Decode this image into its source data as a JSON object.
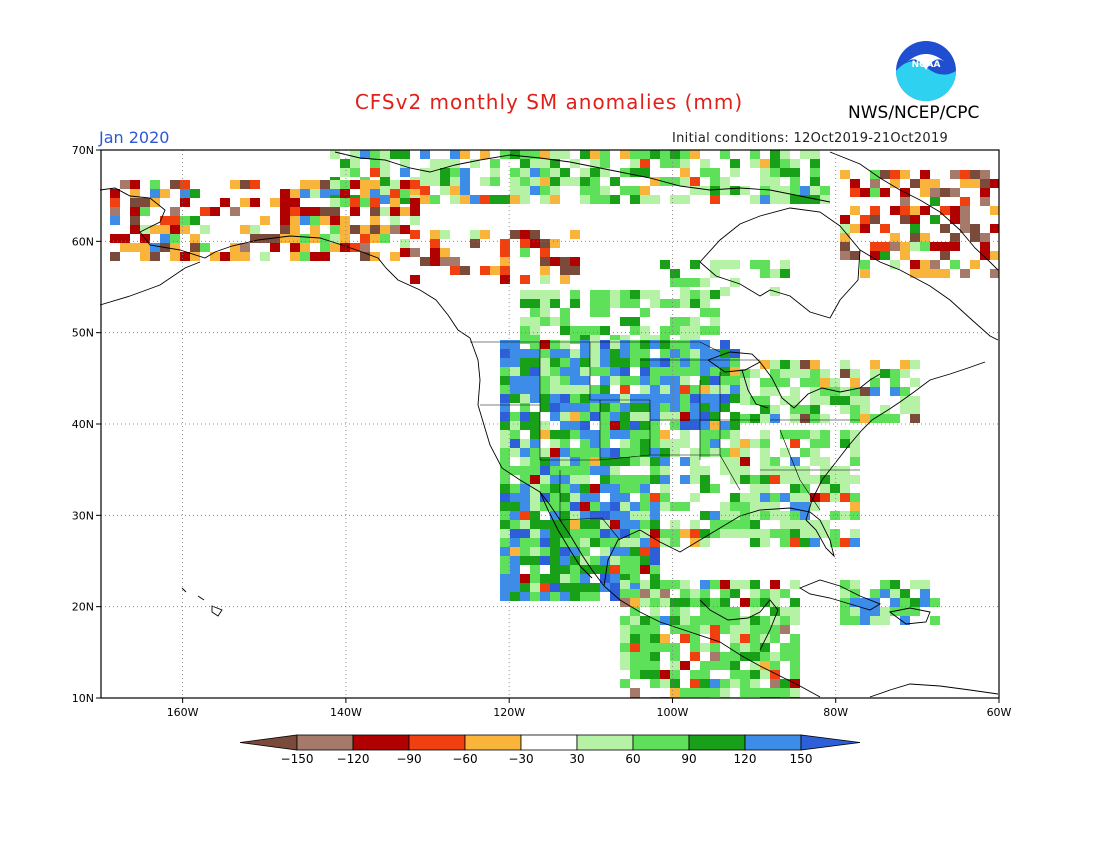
{
  "title": "CFSv2 monthly SM anomalies (mm)",
  "valid_month": "Jan 2020",
  "initial_conditions": "Initial conditions: 12Oct2019-21Oct2019",
  "agency": "NWS/NCEP/CPC",
  "logo_text": "NOAA",
  "map": {
    "lon_range": [
      -170,
      -60
    ],
    "lat_range": [
      10,
      70
    ],
    "lat_labels": [
      "70N",
      "60N",
      "50N",
      "40N",
      "30N",
      "20N",
      "10N"
    ],
    "lon_labels": [
      "160W",
      "140W",
      "120W",
      "100W",
      "80W",
      "60W"
    ],
    "gridlines": "dotted",
    "region": "North America"
  },
  "colorbar": {
    "tick_labels": [
      "−150",
      "−120",
      "−90",
      "−60",
      "−30",
      "30",
      "60",
      "90",
      "120",
      "150"
    ],
    "colors": [
      "#7a4a3a",
      "#a67a6a",
      "#b00000",
      "#f0400f",
      "#f9b43c",
      "#ffffff",
      "#b5f2a5",
      "#5ee05a",
      "#18a018",
      "#3c8ce8",
      "#2d5fd8"
    ]
  },
  "colors": {
    "title": "#e0201a",
    "month": "#2d57d8"
  }
}
